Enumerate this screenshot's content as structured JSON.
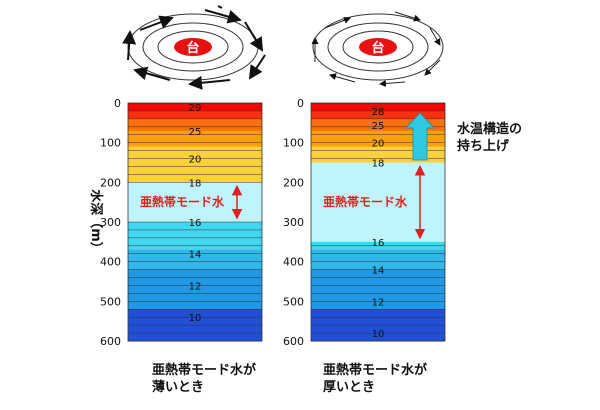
{
  "typhoon_label": "台",
  "y_axis": {
    "label": "水深（m）",
    "ticks": [
      0,
      100,
      200,
      300,
      400,
      500,
      600
    ]
  },
  "panels": [
    {
      "id": "thin",
      "caption_line1": "亜熱帯モード水が",
      "caption_line2": "薄いとき",
      "mode_water_label": "亜熱帯モード水",
      "mode_water_range_m": [
        200,
        300
      ],
      "isotherms": [
        {
          "label": "29",
          "depth_m": 10
        },
        {
          "label": "25",
          "depth_m": 70
        },
        {
          "label": "20",
          "depth_m": 140
        },
        {
          "label": "18",
          "depth_m": 200
        },
        {
          "label": "16",
          "depth_m": 300
        },
        {
          "label": "14",
          "depth_m": 380
        },
        {
          "label": "12",
          "depth_m": 460
        },
        {
          "label": "10",
          "depth_m": 540
        }
      ]
    },
    {
      "id": "thick",
      "caption_line1": "亜熱帯モード水が",
      "caption_line2": "厚いとき",
      "mode_water_label": "亜熱帯モード水",
      "mode_water_range_m": [
        150,
        350
      ],
      "upwelling_label_line1": "水温構造の",
      "upwelling_label_line2": "持ち上げ",
      "isotherms": [
        {
          "label": "28",
          "depth_m": 20
        },
        {
          "label": "25",
          "depth_m": 55
        },
        {
          "label": "20",
          "depth_m": 100
        },
        {
          "label": "18",
          "depth_m": 150
        },
        {
          "label": "16",
          "depth_m": 350
        },
        {
          "label": "14",
          "depth_m": 420
        },
        {
          "label": "12",
          "depth_m": 500
        },
        {
          "label": "10",
          "depth_m": 580
        }
      ]
    }
  ],
  "colors": {
    "warm_red": "#f01010",
    "orange": "#f8a010",
    "yellow": "#f8d040",
    "mode_water": "#c0f4fc",
    "cyan": "#40d8f0",
    "blue_mid": "#2098e8",
    "blue_deep": "#2050d8",
    "arrow_red": "#e02020",
    "upwelling_arrow": "#30c8e0",
    "typhoon_center": "#e81010"
  }
}
